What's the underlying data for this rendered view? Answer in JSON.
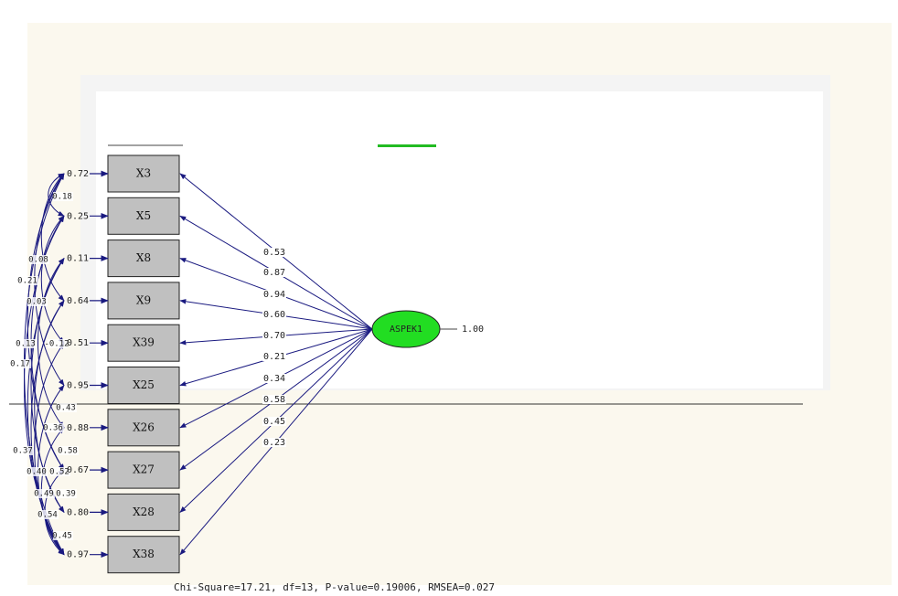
{
  "indicators": [
    {
      "label": "X3",
      "error": "0.72",
      "loading": "0.53"
    },
    {
      "label": "X5",
      "error": "0.25",
      "loading": "0.87"
    },
    {
      "label": "X8",
      "error": "0.11",
      "loading": "0.94"
    },
    {
      "label": "X9",
      "error": "0.64",
      "loading": "0.60"
    },
    {
      "label": "X39",
      "error": "0.51",
      "loading": "0.70"
    },
    {
      "label": "X25",
      "error": "0.95",
      "loading": "0.21"
    },
    {
      "label": "X26",
      "error": "0.88",
      "loading": "0.34"
    },
    {
      "label": "X27",
      "error": "0.67",
      "loading": "0.58"
    },
    {
      "label": "X28",
      "error": "0.80",
      "loading": "0.45"
    },
    {
      "label": "X38",
      "error": "0.97",
      "loading": "0.23"
    }
  ],
  "latent": {
    "label": "ASPEK1",
    "variance": "1.00"
  },
  "covariances": [
    "0.18",
    "0.08",
    "0.21",
    "0.03",
    "0.13",
    "-0.12",
    "0.17",
    "0.43",
    "0.36",
    "0.58",
    "0.52",
    "0.40",
    "0.37",
    "0.49",
    "0.39",
    "0.54",
    "0.45"
  ],
  "fit": "Chi-Square=17.21, df=13, P-value=0.19006, RMSEA=0.027"
}
